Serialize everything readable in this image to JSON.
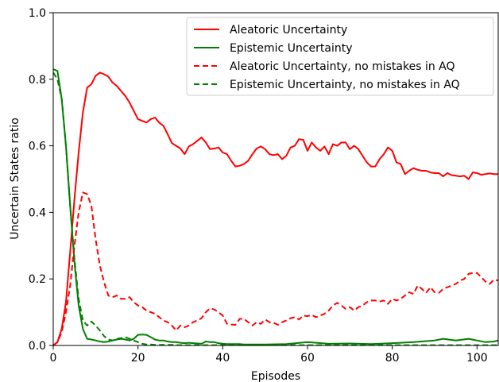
{
  "chart_data": {
    "type": "line",
    "xlabel": "Episodes",
    "ylabel": "Uncertain States ratio",
    "xlim": [
      0,
      105
    ],
    "ylim": [
      0,
      1.0
    ],
    "xticks": [
      0,
      20,
      40,
      60,
      80,
      100
    ],
    "yticks": [
      0.0,
      0.2,
      0.4,
      0.6,
      0.8,
      1.0
    ],
    "xtick_labels": [
      "0",
      "20",
      "40",
      "60",
      "80",
      "100"
    ],
    "ytick_labels": [
      "0.0",
      "0.2",
      "0.4",
      "0.6",
      "0.8",
      "1.0"
    ],
    "grid": false,
    "legend_position": "top-right",
    "series": [
      {
        "name": "Aleatoric Uncertainty",
        "color": "#ff0000",
        "dash": "solid",
        "x": [
          0,
          1,
          2,
          3,
          4,
          5,
          6,
          7,
          8,
          9,
          10,
          11,
          12,
          13,
          14,
          15,
          16,
          17,
          18,
          19,
          20,
          21,
          22,
          23,
          24,
          25,
          26,
          27,
          28,
          29,
          30,
          31,
          32,
          33,
          34,
          35,
          36,
          37,
          38,
          39,
          40,
          41,
          42,
          43,
          44,
          45,
          46,
          47,
          48,
          49,
          50,
          51,
          52,
          53,
          54,
          55,
          56,
          57,
          58,
          59,
          60,
          61,
          62,
          63,
          64,
          65,
          66,
          67,
          68,
          69,
          70,
          71,
          72,
          73,
          74,
          75,
          76,
          77,
          78,
          79,
          80,
          81,
          82,
          83,
          84,
          85,
          86,
          87,
          88,
          89,
          90,
          91,
          92,
          93,
          94,
          95,
          96,
          97,
          98,
          99,
          100,
          101,
          102,
          103,
          104,
          105
        ],
        "values": [
          0.0,
          0.01,
          0.05,
          0.13,
          0.28,
          0.44,
          0.58,
          0.7,
          0.775,
          0.785,
          0.81,
          0.82,
          0.815,
          0.808,
          0.79,
          0.78,
          0.765,
          0.75,
          0.73,
          0.705,
          0.68,
          0.675,
          0.67,
          0.68,
          0.685,
          0.67,
          0.66,
          0.635,
          0.608,
          0.6,
          0.592,
          0.575,
          0.598,
          0.605,
          0.615,
          0.625,
          0.61,
          0.59,
          0.592,
          0.595,
          0.58,
          0.575,
          0.555,
          0.538,
          0.54,
          0.545,
          0.555,
          0.575,
          0.592,
          0.598,
          0.59,
          0.575,
          0.572,
          0.575,
          0.56,
          0.57,
          0.595,
          0.6,
          0.62,
          0.618,
          0.585,
          0.61,
          0.595,
          0.585,
          0.598,
          0.575,
          0.605,
          0.6,
          0.61,
          0.61,
          0.59,
          0.6,
          0.59,
          0.57,
          0.55,
          0.538,
          0.538,
          0.56,
          0.575,
          0.595,
          0.585,
          0.55,
          0.545,
          0.515,
          0.525,
          0.533,
          0.528,
          0.525,
          0.525,
          0.52,
          0.518,
          0.518,
          0.508,
          0.518,
          0.512,
          0.51,
          0.508,
          0.51,
          0.5,
          0.52,
          0.518,
          0.513,
          0.515,
          0.517,
          0.515,
          0.515
        ]
      },
      {
        "name": "Epistemic Uncertainty",
        "color": "#008000",
        "dash": "solid",
        "x": [
          0,
          1,
          2,
          3,
          4,
          5,
          6,
          7,
          8,
          9,
          10,
          11,
          12,
          13,
          14,
          15,
          16,
          17,
          18,
          19,
          20,
          21,
          22,
          23,
          24,
          25,
          26,
          27,
          28,
          29,
          30,
          31,
          32,
          33,
          34,
          35,
          36,
          37,
          38,
          39,
          40,
          41,
          42,
          43,
          44,
          45,
          46,
          47,
          48,
          49,
          50,
          55,
          60,
          65,
          70,
          75,
          80,
          85,
          90,
          92,
          95,
          98,
          100,
          102,
          104,
          105
        ],
        "values": [
          0.83,
          0.825,
          0.74,
          0.6,
          0.42,
          0.25,
          0.12,
          0.05,
          0.02,
          0.018,
          0.015,
          0.012,
          0.01,
          0.012,
          0.015,
          0.018,
          0.02,
          0.018,
          0.015,
          0.02,
          0.032,
          0.033,
          0.032,
          0.025,
          0.018,
          0.015,
          0.015,
          0.012,
          0.01,
          0.01,
          0.008,
          0.007,
          0.008,
          0.007,
          0.006,
          0.005,
          0.012,
          0.01,
          0.01,
          0.007,
          0.005,
          0.004,
          0.004,
          0.004,
          0.004,
          0.003,
          0.003,
          0.003,
          0.003,
          0.003,
          0.003,
          0.004,
          0.01,
          0.005,
          0.006,
          0.004,
          0.007,
          0.01,
          0.015,
          0.02,
          0.015,
          0.02,
          0.015,
          0.01,
          0.012,
          0.015
        ]
      },
      {
        "name": "Aleatoric Uncertainty, no mistakes in AQ",
        "color": "#ff0000",
        "dash": "dashed",
        "x": [
          0,
          1,
          2,
          3,
          4,
          5,
          6,
          7,
          8,
          9,
          10,
          11,
          12,
          13,
          14,
          15,
          16,
          17,
          18,
          19,
          20,
          21,
          22,
          23,
          24,
          25,
          26,
          27,
          28,
          29,
          30,
          31,
          32,
          33,
          34,
          35,
          36,
          37,
          38,
          39,
          40,
          41,
          42,
          43,
          44,
          45,
          46,
          47,
          48,
          49,
          50,
          51,
          52,
          53,
          54,
          55,
          56,
          57,
          58,
          59,
          60,
          61,
          62,
          63,
          64,
          65,
          66,
          67,
          68,
          69,
          70,
          71,
          72,
          73,
          74,
          75,
          76,
          77,
          78,
          79,
          80,
          81,
          82,
          83,
          84,
          85,
          86,
          87,
          88,
          89,
          90,
          91,
          92,
          93,
          94,
          95,
          96,
          97,
          98,
          99,
          100,
          101,
          102,
          103,
          104,
          105
        ],
        "values": [
          0.0,
          0.01,
          0.04,
          0.1,
          0.18,
          0.3,
          0.4,
          0.46,
          0.455,
          0.42,
          0.32,
          0.24,
          0.19,
          0.15,
          0.145,
          0.15,
          0.14,
          0.14,
          0.145,
          0.13,
          0.12,
          0.115,
          0.105,
          0.1,
          0.095,
          0.085,
          0.075,
          0.07,
          0.06,
          0.045,
          0.06,
          0.055,
          0.06,
          0.07,
          0.075,
          0.082,
          0.1,
          0.112,
          0.108,
          0.1,
          0.09,
          0.065,
          0.063,
          0.062,
          0.08,
          0.08,
          0.07,
          0.06,
          0.07,
          0.065,
          0.078,
          0.07,
          0.068,
          0.062,
          0.07,
          0.075,
          0.082,
          0.085,
          0.078,
          0.09,
          0.088,
          0.092,
          0.085,
          0.09,
          0.095,
          0.105,
          0.12,
          0.128,
          0.12,
          0.11,
          0.115,
          0.105,
          0.115,
          0.12,
          0.13,
          0.135,
          0.135,
          0.132,
          0.135,
          0.125,
          0.14,
          0.135,
          0.14,
          0.15,
          0.16,
          0.155,
          0.18,
          0.17,
          0.158,
          0.175,
          0.16,
          0.158,
          0.17,
          0.175,
          0.18,
          0.185,
          0.195,
          0.2,
          0.215,
          0.218,
          0.218,
          0.205,
          0.192,
          0.185,
          0.198,
          0.195
        ]
      },
      {
        "name": "Epistemic Uncertainty, no mistakes in AQ",
        "color": "#008000",
        "dash": "dashed",
        "x": [
          0,
          1,
          2,
          3,
          4,
          5,
          6,
          7,
          8,
          9,
          10,
          11,
          12,
          13,
          14,
          15,
          16,
          17,
          18,
          19,
          20,
          21,
          22,
          23,
          24,
          25,
          26,
          27,
          28,
          29,
          30,
          35,
          40,
          45,
          50,
          60,
          70,
          80,
          90,
          100,
          105
        ],
        "values": [
          0.82,
          0.8,
          0.74,
          0.6,
          0.42,
          0.26,
          0.14,
          0.075,
          0.06,
          0.072,
          0.06,
          0.045,
          0.028,
          0.018,
          0.015,
          0.02,
          0.022,
          0.025,
          0.02,
          0.015,
          0.01,
          0.005,
          0.003,
          0.003,
          0.002,
          0.002,
          0.002,
          0.002,
          0.002,
          0.001,
          0.001,
          0.001,
          0.001,
          0.001,
          0.001,
          0.001,
          0.001,
          0.001,
          0.001,
          0.001,
          0.001
        ]
      }
    ]
  }
}
